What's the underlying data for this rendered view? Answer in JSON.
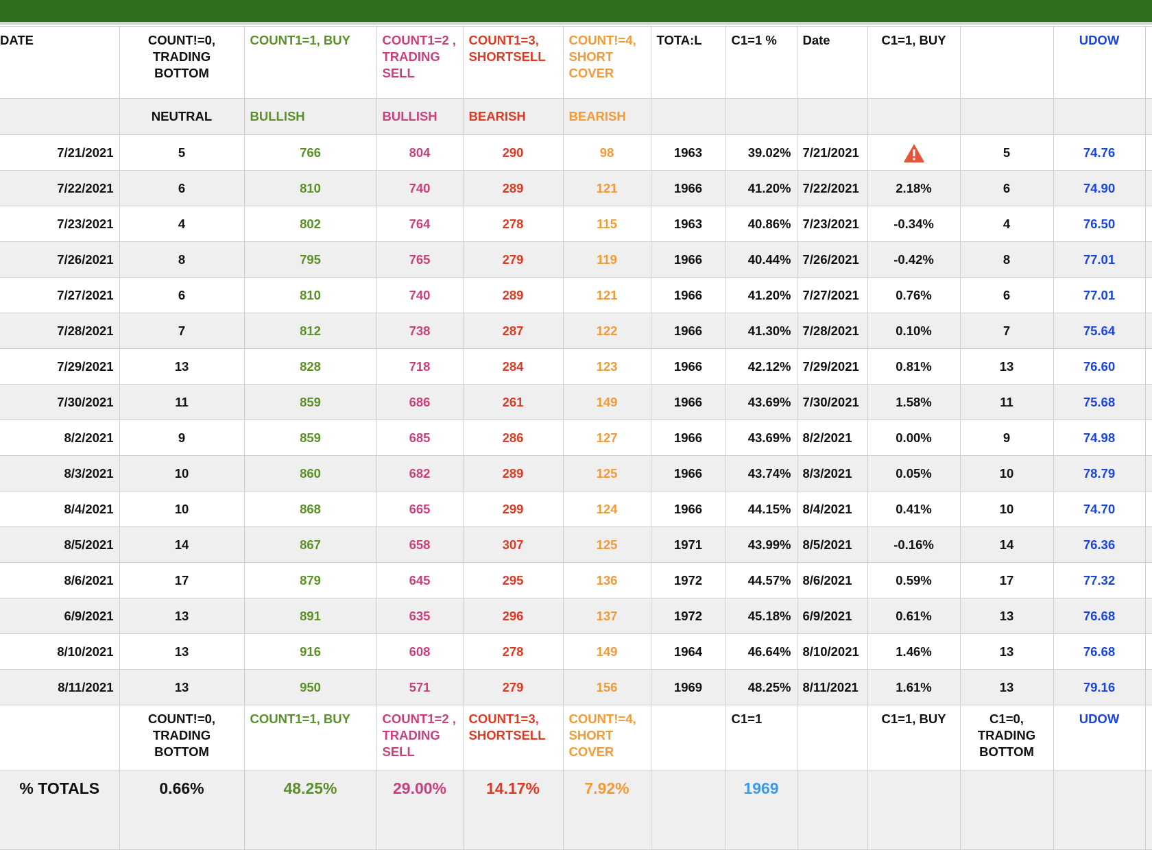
{
  "header": {
    "date": "DATE",
    "count0": "COUNT!=0, TRADING BOTTOM",
    "count1": "COUNT1=1, BUY",
    "count2": "COUNT1=2 , TRADING SELL",
    "count3": "COUNT1=3, SHORTSELL",
    "count4": "COUNT!=4, SHORT COVER",
    "total": "TOTA:L",
    "c1pct": "C1=1 %",
    "date2": "Date",
    "c1buy": "C1=1, BUY",
    "blank": "",
    "udow": "UDOW"
  },
  "subheader": {
    "neutral": "NEUTRAL",
    "bullish1": "BULLISH",
    "bullish2": "BULLISH",
    "bearish1": "BEARISH",
    "bearish2": "BEARISH"
  },
  "rows": [
    {
      "date": "7/21/2021",
      "c0": "5",
      "c1": "766",
      "c2": "804",
      "c3": "290",
      "c4": "98",
      "total": "1963",
      "pct": "39.02%",
      "date2": "7/21/2021",
      "buy": "",
      "warn": true,
      "n": "5",
      "udow": "74.76"
    },
    {
      "date": "7/22/2021",
      "c0": "6",
      "c1": "810",
      "c2": "740",
      "c3": "289",
      "c4": "121",
      "total": "1966",
      "pct": "41.20%",
      "date2": "7/22/2021",
      "buy": "2.18%",
      "warn": false,
      "n": "6",
      "udow": "74.90"
    },
    {
      "date": "7/23/2021",
      "c0": "4",
      "c1": "802",
      "c2": "764",
      "c3": "278",
      "c4": "115",
      "total": "1963",
      "pct": "40.86%",
      "date2": "7/23/2021",
      "buy": "-0.34%",
      "warn": false,
      "n": "4",
      "udow": "76.50"
    },
    {
      "date": "7/26/2021",
      "c0": "8",
      "c1": "795",
      "c2": "765",
      "c3": "279",
      "c4": "119",
      "total": "1966",
      "pct": "40.44%",
      "date2": "7/26/2021",
      "buy": "-0.42%",
      "warn": false,
      "n": "8",
      "udow": "77.01"
    },
    {
      "date": "7/27/2021",
      "c0": "6",
      "c1": "810",
      "c2": "740",
      "c3": "289",
      "c4": "121",
      "total": "1966",
      "pct": "41.20%",
      "date2": "7/27/2021",
      "buy": "0.76%",
      "warn": false,
      "n": "6",
      "udow": "77.01"
    },
    {
      "date": "7/28/2021",
      "c0": "7",
      "c1": "812",
      "c2": "738",
      "c3": "287",
      "c4": "122",
      "total": "1966",
      "pct": "41.30%",
      "date2": "7/28/2021",
      "buy": "0.10%",
      "warn": false,
      "n": "7",
      "udow": "75.64"
    },
    {
      "date": "7/29/2021",
      "c0": "13",
      "c1": "828",
      "c2": "718",
      "c3": "284",
      "c4": "123",
      "total": "1966",
      "pct": "42.12%",
      "date2": "7/29/2021",
      "buy": "0.81%",
      "warn": false,
      "n": "13",
      "udow": "76.60"
    },
    {
      "date": "7/30/2021",
      "c0": "11",
      "c1": "859",
      "c2": "686",
      "c3": "261",
      "c4": "149",
      "total": "1966",
      "pct": "43.69%",
      "date2": "7/30/2021",
      "buy": "1.58%",
      "warn": false,
      "n": "11",
      "udow": "75.68"
    },
    {
      "date": "8/2/2021",
      "c0": "9",
      "c1": "859",
      "c2": "685",
      "c3": "286",
      "c4": "127",
      "total": "1966",
      "pct": "43.69%",
      "date2": "8/2/2021",
      "buy": "0.00%",
      "warn": false,
      "n": "9",
      "udow": "74.98"
    },
    {
      "date": "8/3/2021",
      "c0": "10",
      "c1": "860",
      "c2": "682",
      "c3": "289",
      "c4": "125",
      "total": "1966",
      "pct": "43.74%",
      "date2": "8/3/2021",
      "buy": "0.05%",
      "warn": false,
      "n": "10",
      "udow": "78.79"
    },
    {
      "date": "8/4/2021",
      "c0": "10",
      "c1": "868",
      "c2": "665",
      "c3": "299",
      "c4": "124",
      "total": "1966",
      "pct": "44.15%",
      "date2": "8/4/2021",
      "buy": "0.41%",
      "warn": false,
      "n": "10",
      "udow": "74.70"
    },
    {
      "date": "8/5/2021",
      "c0": "14",
      "c1": "867",
      "c2": "658",
      "c3": "307",
      "c4": "125",
      "total": "1971",
      "pct": "43.99%",
      "date2": "8/5/2021",
      "buy": "-0.16%",
      "warn": false,
      "n": "14",
      "udow": "76.36"
    },
    {
      "date": "8/6/2021",
      "c0": "17",
      "c1": "879",
      "c2": "645",
      "c3": "295",
      "c4": "136",
      "total": "1972",
      "pct": "44.57%",
      "date2": "8/6/2021",
      "buy": "0.59%",
      "warn": false,
      "n": "17",
      "udow": "77.32"
    },
    {
      "date": "6/9/2021",
      "c0": "13",
      "c1": "891",
      "c2": "635",
      "c3": "296",
      "c4": "137",
      "total": "1972",
      "pct": "45.18%",
      "date2": "6/9/2021",
      "buy": "0.61%",
      "warn": false,
      "n": "13",
      "udow": "76.68"
    },
    {
      "date": "8/10/2021",
      "c0": "13",
      "c1": "916",
      "c2": "608",
      "c3": "278",
      "c4": "149",
      "total": "1964",
      "pct": "46.64%",
      "date2": "8/10/2021",
      "buy": "1.46%",
      "warn": false,
      "n": "13",
      "udow": "76.68"
    },
    {
      "date": "8/11/2021",
      "c0": "13",
      "c1": "950",
      "c2": "571",
      "c3": "279",
      "c4": "156",
      "total": "1969",
      "pct": "48.25%",
      "date2": "8/11/2021",
      "buy": "1.61%",
      "warn": false,
      "n": "13",
      "udow": "79.16"
    }
  ],
  "footer": {
    "count0": "COUNT!=0, TRADING BOTTOM",
    "count1": "COUNT1=1, BUY",
    "count2": "COUNT1=2 , TRADING SELL",
    "count3": "COUNT1=3, SHORTSELL",
    "count4": "COUNT!=4, SHORT COVER",
    "c1": "C1=1",
    "c1buy": "C1=1, BUY",
    "c0": "C1=0, TRADING BOTTOM",
    "udow": "UDOW"
  },
  "totals": {
    "label": "% TOTALS",
    "c0": "0.66%",
    "c1": "48.25%",
    "c2": "29.00%",
    "c3": "14.17%",
    "c4": "7.92%",
    "c1val": "1969"
  },
  "colors": {
    "header_bar": "#2e6e1e",
    "buy": "#5b8f2a",
    "trading_sell": "#c8417d",
    "shortsell": "#de3a23",
    "short_cover": "#f29a35",
    "udow": "#1a44e0",
    "warning": "#e4563c"
  }
}
